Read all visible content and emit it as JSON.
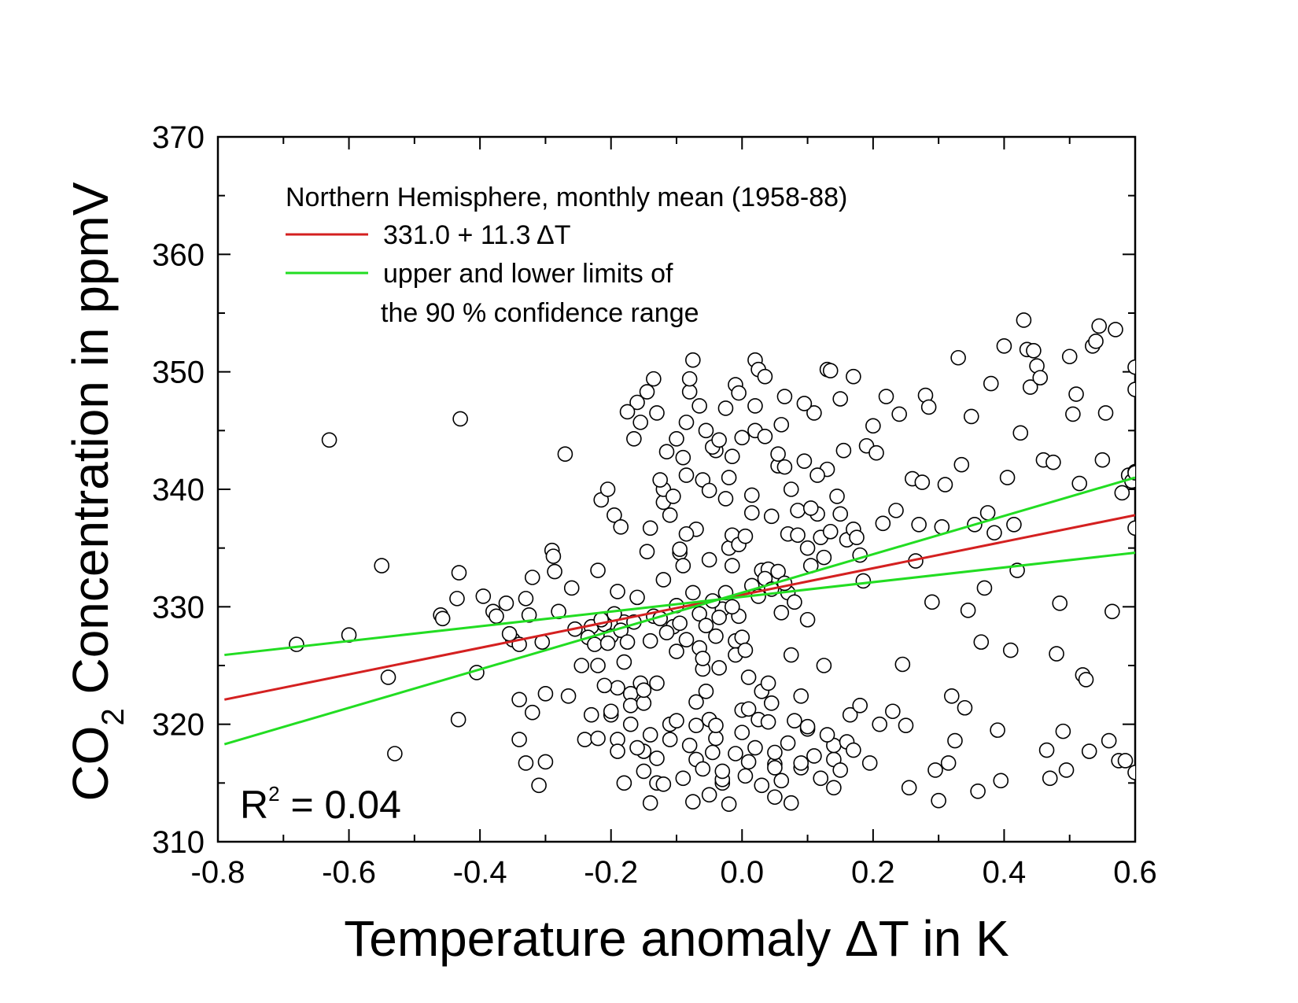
{
  "chart_data": {
    "type": "scatter",
    "xlabel": "Temperature anomaly ΔT in K",
    "ylabel_parts": {
      "pre": "CO",
      "sub": "2",
      "post": " Concentration in ppmV"
    },
    "xlim": [
      -0.8,
      0.6
    ],
    "ylim": [
      310,
      370
    ],
    "x_ticks": [
      -0.8,
      -0.6,
      -0.4,
      -0.2,
      0.0,
      0.2,
      0.4,
      0.6
    ],
    "x_tick_labels": [
      "-0.8",
      "-0.6",
      "-0.4",
      "-0.2",
      "0.0",
      "0.2",
      "0.4",
      "0.6"
    ],
    "y_ticks": [
      310,
      320,
      330,
      340,
      350,
      360,
      370
    ],
    "y_tick_labels": [
      "310",
      "320",
      "330",
      "340",
      "350",
      "360",
      "370"
    ],
    "x_minor_step": 0.1,
    "y_minor_step": 5,
    "legend": {
      "title": "Northern Hemisphere, monthly mean (1958-88)",
      "fit_label": "331.0 + 11.3 ΔT",
      "limits_label_line1": "upper and lower limits of",
      "limits_label_line2": "the 90 % confidence range"
    },
    "r2": {
      "pre": "R",
      "sup": "2",
      "post": " = 0.04"
    },
    "series": [
      {
        "name": "fit",
        "kind": "line",
        "color": "#d42020",
        "x": [
          -0.79,
          0.6
        ],
        "y": [
          322.1,
          337.8
        ]
      },
      {
        "name": "upper limit",
        "kind": "line",
        "color": "#22dd22",
        "x": [
          -0.79,
          0.6
        ],
        "y": [
          318.3,
          341.0
        ]
      },
      {
        "name": "lower limit",
        "kind": "line",
        "color": "#22dd22",
        "x": [
          -0.79,
          0.6
        ],
        "y": [
          325.9,
          334.6
        ]
      }
    ],
    "points": [
      [
        -0.68,
        326.8
      ],
      [
        -0.63,
        344.2
      ],
      [
        -0.6,
        327.6
      ],
      [
        -0.55,
        333.5
      ],
      [
        -0.54,
        324.0
      ],
      [
        -0.53,
        317.5
      ],
      [
        -0.46,
        329.3
      ],
      [
        -0.457,
        329.0
      ],
      [
        -0.435,
        330.7
      ],
      [
        -0.433,
        320.4
      ],
      [
        -0.432,
        332.9
      ],
      [
        -0.43,
        346.0
      ],
      [
        -0.38,
        329.6
      ],
      [
        -0.36,
        330.3
      ],
      [
        -0.35,
        327.2
      ],
      [
        -0.34,
        318.7
      ],
      [
        -0.34,
        322.1
      ],
      [
        -0.34,
        326.8
      ],
      [
        -0.33,
        316.7
      ],
      [
        -0.33,
        330.7
      ],
      [
        -0.32,
        332.5
      ],
      [
        -0.32,
        321.0
      ],
      [
        -0.31,
        314.8
      ],
      [
        -0.3,
        316.8
      ],
      [
        -0.3,
        322.6
      ],
      [
        -0.29,
        334.8
      ],
      [
        -0.288,
        334.3
      ],
      [
        -0.286,
        333.0
      ],
      [
        -0.28,
        329.6
      ],
      [
        -0.27,
        343.0
      ],
      [
        -0.265,
        322.4
      ],
      [
        -0.26,
        331.6
      ],
      [
        -0.24,
        318.7
      ],
      [
        -0.23,
        328.3
      ],
      [
        -0.22,
        333.1
      ],
      [
        -0.22,
        325.0
      ],
      [
        -0.21,
        328.5
      ],
      [
        -0.2,
        327.5
      ],
      [
        -0.2,
        320.8
      ],
      [
        -0.19,
        331.3
      ],
      [
        -0.19,
        323.1
      ],
      [
        -0.19,
        318.7
      ],
      [
        -0.18,
        325.3
      ],
      [
        -0.18,
        328.7
      ],
      [
        -0.17,
        322.6
      ],
      [
        -0.17,
        321.6
      ],
      [
        -0.16,
        330.8
      ],
      [
        -0.16,
        347.4
      ],
      [
        -0.155,
        323.5
      ],
      [
        -0.15,
        321.8
      ],
      [
        -0.15,
        317.7
      ],
      [
        -0.15,
        322.9
      ],
      [
        -0.145,
        334.7
      ],
      [
        -0.14,
        336.7
      ],
      [
        -0.14,
        319.1
      ],
      [
        -0.14,
        327.1
      ],
      [
        -0.135,
        329.2
      ],
      [
        -0.13,
        346.5
      ],
      [
        -0.13,
        315.0
      ],
      [
        -0.13,
        323.5
      ],
      [
        -0.12,
        338.9
      ],
      [
        -0.12,
        332.3
      ],
      [
        -0.12,
        340.0
      ],
      [
        -0.11,
        337.8
      ],
      [
        -0.11,
        320.0
      ],
      [
        -0.105,
        328.3
      ],
      [
        -0.1,
        330.1
      ],
      [
        -0.1,
        344.3
      ],
      [
        -0.1,
        326.2
      ],
      [
        -0.095,
        334.6
      ],
      [
        -0.09,
        333.5
      ],
      [
        -0.09,
        342.7
      ],
      [
        -0.085,
        341.2
      ],
      [
        -0.085,
        345.7
      ],
      [
        -0.08,
        348.3
      ],
      [
        -0.08,
        349.4
      ],
      [
        -0.075,
        331.2
      ],
      [
        -0.075,
        313.4
      ],
      [
        -0.07,
        319.9
      ],
      [
        -0.07,
        336.6
      ],
      [
        -0.07,
        317.0
      ],
      [
        -0.065,
        326.5
      ],
      [
        -0.06,
        340.8
      ],
      [
        -0.06,
        324.7
      ],
      [
        -0.06,
        325.6
      ],
      [
        -0.055,
        322.8
      ],
      [
        -0.05,
        334.0
      ],
      [
        -0.05,
        339.9
      ],
      [
        -0.05,
        320.4
      ],
      [
        -0.045,
        317.6
      ],
      [
        -0.04,
        318.8
      ],
      [
        -0.04,
        343.3
      ],
      [
        -0.04,
        327.5
      ],
      [
        -0.035,
        324.8
      ],
      [
        -0.03,
        315.0
      ],
      [
        -0.03,
        315.3
      ],
      [
        -0.03,
        329.8
      ],
      [
        -0.025,
        339.2
      ],
      [
        -0.02,
        341.0
      ],
      [
        -0.02,
        335.0
      ],
      [
        -0.015,
        336.1
      ],
      [
        -0.015,
        342.8
      ],
      [
        -0.01,
        348.9
      ],
      [
        -0.01,
        327.1
      ],
      [
        -0.01,
        325.9
      ],
      [
        -0.005,
        329.2
      ],
      [
        -0.005,
        348.2
      ],
      [
        0.0,
        344.4
      ],
      [
        0.0,
        321.2
      ],
      [
        0.0,
        327.4
      ],
      [
        0.005,
        315.6
      ],
      [
        0.005,
        326.3
      ],
      [
        0.01,
        324.0
      ],
      [
        0.01,
        321.3
      ],
      [
        0.015,
        339.5
      ],
      [
        0.02,
        351.0
      ],
      [
        0.02,
        347.1
      ],
      [
        0.02,
        345.0
      ],
      [
        0.025,
        320.4
      ],
      [
        0.03,
        322.8
      ],
      [
        0.03,
        333.1
      ],
      [
        0.035,
        344.5
      ],
      [
        0.04,
        323.5
      ],
      [
        0.04,
        333.2
      ],
      [
        0.045,
        321.8
      ],
      [
        0.05,
        313.8
      ],
      [
        0.05,
        316.6
      ],
      [
        0.05,
        316.3
      ],
      [
        0.055,
        342.0
      ],
      [
        0.06,
        345.5
      ],
      [
        0.06,
        329.5
      ],
      [
        0.065,
        347.9
      ],
      [
        0.07,
        336.2
      ],
      [
        0.07,
        331.2
      ],
      [
        0.075,
        325.9
      ],
      [
        0.075,
        313.3
      ],
      [
        0.08,
        330.4
      ],
      [
        0.085,
        336.1
      ],
      [
        0.09,
        322.4
      ],
      [
        0.09,
        316.3
      ],
      [
        0.095,
        342.4
      ],
      [
        0.1,
        335.0
      ],
      [
        0.1,
        319.6
      ],
      [
        0.1,
        328.9
      ],
      [
        0.105,
        333.5
      ],
      [
        0.11,
        346.5
      ],
      [
        0.115,
        337.9
      ],
      [
        0.12,
        335.9
      ],
      [
        0.125,
        325.0
      ],
      [
        0.13,
        341.7
      ],
      [
        0.13,
        350.2
      ],
      [
        0.135,
        350.1
      ],
      [
        0.14,
        317.0
      ],
      [
        0.14,
        318.2
      ],
      [
        0.145,
        339.4
      ],
      [
        0.15,
        347.7
      ],
      [
        0.15,
        337.9
      ],
      [
        0.155,
        343.3
      ],
      [
        0.16,
        335.7
      ],
      [
        0.165,
        320.8
      ],
      [
        0.17,
        336.6
      ],
      [
        0.17,
        349.6
      ],
      [
        0.175,
        335.9
      ],
      [
        0.18,
        334.4
      ],
      [
        0.185,
        332.2
      ],
      [
        0.19,
        343.7
      ],
      [
        0.195,
        316.7
      ],
      [
        0.2,
        345.4
      ],
      [
        0.205,
        343.1
      ],
      [
        0.21,
        320.0
      ],
      [
        0.215,
        337.1
      ],
      [
        0.22,
        347.9
      ],
      [
        0.23,
        321.1
      ],
      [
        0.235,
        338.2
      ],
      [
        0.24,
        346.4
      ],
      [
        0.245,
        325.1
      ],
      [
        0.25,
        319.9
      ],
      [
        0.255,
        314.6
      ],
      [
        0.26,
        340.9
      ],
      [
        0.265,
        333.9
      ],
      [
        0.27,
        337.0
      ],
      [
        0.275,
        340.6
      ],
      [
        0.28,
        348.0
      ],
      [
        0.285,
        347.0
      ],
      [
        0.29,
        330.4
      ],
      [
        0.295,
        316.1
      ],
      [
        0.3,
        313.5
      ],
      [
        0.305,
        336.8
      ],
      [
        0.31,
        340.4
      ],
      [
        0.315,
        316.7
      ],
      [
        0.32,
        322.4
      ],
      [
        0.325,
        318.6
      ],
      [
        0.33,
        351.2
      ],
      [
        0.335,
        342.1
      ],
      [
        0.34,
        321.4
      ],
      [
        0.345,
        329.7
      ],
      [
        0.35,
        346.2
      ],
      [
        0.355,
        337.0
      ],
      [
        0.36,
        314.3
      ],
      [
        0.365,
        327.0
      ],
      [
        0.37,
        331.6
      ],
      [
        0.375,
        338.0
      ],
      [
        0.38,
        349.0
      ],
      [
        0.385,
        336.3
      ],
      [
        0.39,
        319.5
      ],
      [
        0.395,
        315.2
      ],
      [
        0.4,
        352.2
      ],
      [
        0.405,
        341.0
      ],
      [
        0.41,
        326.3
      ],
      [
        0.415,
        337.0
      ],
      [
        0.42,
        333.1
      ],
      [
        0.425,
        344.8
      ],
      [
        0.43,
        354.4
      ],
      [
        0.435,
        351.9
      ],
      [
        0.44,
        348.7
      ],
      [
        0.445,
        351.8
      ],
      [
        0.45,
        350.5
      ],
      [
        0.455,
        349.5
      ],
      [
        0.46,
        342.5
      ],
      [
        0.465,
        317.8
      ],
      [
        0.47,
        315.4
      ],
      [
        0.475,
        342.3
      ],
      [
        0.48,
        326.0
      ],
      [
        0.485,
        330.3
      ],
      [
        0.49,
        319.4
      ],
      [
        0.495,
        316.1
      ],
      [
        0.5,
        351.3
      ],
      [
        0.505,
        346.4
      ],
      [
        0.51,
        348.1
      ],
      [
        0.515,
        340.5
      ],
      [
        0.52,
        324.2
      ],
      [
        0.525,
        323.8
      ],
      [
        0.53,
        317.7
      ],
      [
        0.535,
        352.2
      ],
      [
        0.54,
        352.6
      ],
      [
        0.545,
        353.9
      ],
      [
        0.55,
        342.5
      ],
      [
        0.555,
        346.5
      ],
      [
        0.56,
        318.6
      ],
      [
        0.565,
        329.6
      ],
      [
        0.57,
        353.6
      ],
      [
        0.575,
        316.9
      ],
      [
        0.58,
        339.7
      ],
      [
        0.585,
        316.9
      ],
      [
        0.59,
        341.2
      ],
      [
        0.595,
        340.7
      ],
      [
        0.6,
        350.4
      ],
      [
        0.6,
        348.5
      ],
      [
        0.6,
        341.5
      ],
      [
        0.6,
        315.9
      ],
      [
        0.6,
        341.4
      ],
      [
        0.6,
        336.7
      ],
      [
        -0.405,
        324.4
      ],
      [
        -0.395,
        330.9
      ],
      [
        -0.375,
        329.2
      ],
      [
        -0.355,
        327.7
      ],
      [
        -0.325,
        329.3
      ],
      [
        -0.305,
        327.0
      ],
      [
        -0.255,
        328.1
      ],
      [
        -0.245,
        325.0
      ],
      [
        -0.235,
        327.4
      ],
      [
        -0.225,
        326.8
      ],
      [
        -0.215,
        328.9
      ],
      [
        -0.205,
        326.9
      ],
      [
        -0.195,
        329.4
      ],
      [
        -0.185,
        328.0
      ],
      [
        -0.175,
        327.0
      ],
      [
        -0.165,
        328.7
      ],
      [
        -0.125,
        329.0
      ],
      [
        -0.115,
        327.8
      ],
      [
        -0.095,
        328.6
      ],
      [
        -0.085,
        327.2
      ],
      [
        -0.065,
        329.4
      ],
      [
        -0.055,
        328.4
      ],
      [
        -0.045,
        330.5
      ],
      [
        -0.035,
        329.1
      ],
      [
        -0.025,
        331.2
      ],
      [
        -0.015,
        330.0
      ],
      [
        0.015,
        331.8
      ],
      [
        0.025,
        330.9
      ],
      [
        0.035,
        332.4
      ],
      [
        0.045,
        331.5
      ],
      [
        0.055,
        333.0
      ],
      [
        0.065,
        332.0
      ],
      [
        -0.215,
        339.1
      ],
      [
        -0.205,
        340.0
      ],
      [
        -0.195,
        337.8
      ],
      [
        -0.185,
        336.8
      ],
      [
        -0.175,
        346.6
      ],
      [
        -0.165,
        344.3
      ],
      [
        -0.155,
        345.7
      ],
      [
        -0.145,
        348.3
      ],
      [
        -0.135,
        349.4
      ],
      [
        -0.125,
        340.8
      ],
      [
        -0.115,
        343.2
      ],
      [
        -0.105,
        339.4
      ],
      [
        -0.095,
        334.9
      ],
      [
        -0.085,
        336.2
      ],
      [
        -0.075,
        351.0
      ],
      [
        -0.065,
        347.1
      ],
      [
        -0.055,
        345.0
      ],
      [
        -0.045,
        343.6
      ],
      [
        -0.035,
        344.2
      ],
      [
        -0.025,
        346.9
      ],
      [
        -0.015,
        333.5
      ],
      [
        -0.005,
        335.3
      ],
      [
        0.005,
        336.0
      ],
      [
        0.015,
        338.0
      ],
      [
        0.025,
        350.2
      ],
      [
        0.035,
        349.6
      ],
      [
        0.045,
        337.7
      ],
      [
        0.055,
        343.0
      ],
      [
        0.065,
        341.9
      ],
      [
        0.075,
        340.0
      ],
      [
        0.085,
        338.2
      ],
      [
        0.095,
        347.3
      ],
      [
        0.105,
        338.4
      ],
      [
        0.115,
        341.2
      ],
      [
        0.125,
        334.2
      ],
      [
        0.135,
        336.4
      ],
      [
        -0.23,
        320.8
      ],
      [
        -0.22,
        318.8
      ],
      [
        -0.21,
        323.3
      ],
      [
        -0.2,
        321.1
      ],
      [
        -0.19,
        317.7
      ],
      [
        -0.18,
        315.0
      ],
      [
        -0.17,
        320.0
      ],
      [
        -0.16,
        318.0
      ],
      [
        -0.15,
        316.0
      ],
      [
        -0.14,
        313.3
      ],
      [
        -0.13,
        317.1
      ],
      [
        -0.12,
        314.9
      ],
      [
        -0.11,
        318.7
      ],
      [
        -0.1,
        320.3
      ],
      [
        -0.09,
        315.4
      ],
      [
        -0.08,
        318.2
      ],
      [
        -0.07,
        321.9
      ],
      [
        -0.06,
        316.2
      ],
      [
        -0.05,
        314.0
      ],
      [
        -0.04,
        319.9
      ],
      [
        -0.03,
        316.0
      ],
      [
        -0.02,
        313.2
      ],
      [
        -0.01,
        317.5
      ],
      [
        0.0,
        319.3
      ],
      [
        0.01,
        316.8
      ],
      [
        0.02,
        318.0
      ],
      [
        0.03,
        314.8
      ],
      [
        0.04,
        320.2
      ],
      [
        0.05,
        317.6
      ],
      [
        0.06,
        315.2
      ],
      [
        0.07,
        318.4
      ],
      [
        0.08,
        320.3
      ],
      [
        0.09,
        316.7
      ],
      [
        0.1,
        319.8
      ],
      [
        0.11,
        317.3
      ],
      [
        0.12,
        315.4
      ],
      [
        0.13,
        319.1
      ],
      [
        0.14,
        314.6
      ],
      [
        0.15,
        316.1
      ],
      [
        0.16,
        318.5
      ],
      [
        0.17,
        317.8
      ],
      [
        0.18,
        321.6
      ]
    ]
  }
}
